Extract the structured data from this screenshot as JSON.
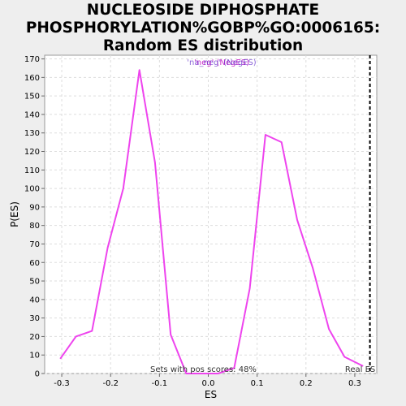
{
  "chart_data": {
    "type": "line",
    "title_lines": [
      "NUCLEOSIDE DIPHOSPHATE",
      "PHOSPHORYLATION%GOBP%GO:0006165:",
      "Random ES distribution"
    ],
    "xlabel": "ES",
    "ylabel": "P(ES)",
    "xlim": [
      -0.335,
      0.345
    ],
    "ylim": [
      0,
      172
    ],
    "x_ticks": [
      -0.3,
      -0.2,
      -0.1,
      0.0,
      0.1,
      0.2,
      0.3
    ],
    "x_tick_labels": [
      "-0.3",
      "-0.2",
      "-0.1",
      "0.0",
      "0.1",
      "0.2",
      "0.3"
    ],
    "y_ticks": [
      0,
      10,
      20,
      30,
      40,
      50,
      60,
      70,
      80,
      90,
      100,
      110,
      120,
      130,
      140,
      150,
      160,
      170
    ],
    "grid": true,
    "legend_position": "top-center",
    "legend_text": "'neg' (NegES)",
    "legend_overlay_text": "'na_neg' (NegES)",
    "series": [
      {
        "color": "#ee44ee",
        "x": [
          -0.303,
          -0.271,
          -0.238,
          -0.206,
          -0.174,
          -0.141,
          -0.109,
          -0.077,
          -0.045,
          -0.012,
          0.02,
          0.053,
          0.085,
          0.117,
          0.15,
          0.182,
          0.214,
          0.247,
          0.279,
          0.317
        ],
        "values": [
          8,
          20,
          23,
          68,
          100,
          164,
          114,
          21,
          0,
          0,
          0,
          3,
          46,
          129,
          125,
          83,
          57,
          24,
          9,
          4
        ]
      }
    ],
    "real_es": {
      "x": 0.331,
      "label": "Real ES"
    },
    "annotation": "Sets with pos scores: 48%"
  }
}
